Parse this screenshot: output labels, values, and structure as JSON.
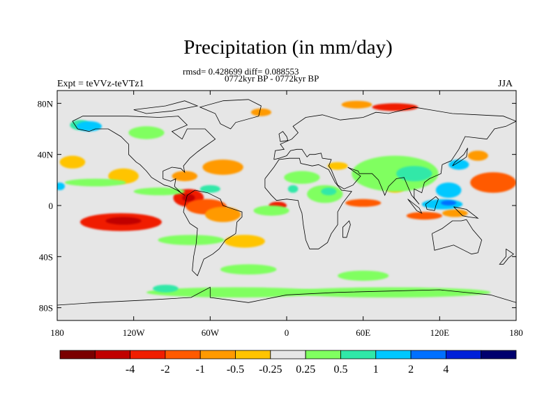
{
  "title": "Precipitation (in mm/day)",
  "stats": "rmsd= 0.428699 diff= 0.088553",
  "period": "0772kyr BP - 0772kyr BP",
  "left_label": "Expt = teVVz-teVTz1",
  "right_label": "JJA",
  "chart_data": {
    "type": "heatmap",
    "title": "Precipitation (in mm/day)",
    "xlim": [
      -180,
      180
    ],
    "ylim": [
      -90,
      90
    ],
    "x_ticks": [
      {
        "value": -180,
        "label": "180"
      },
      {
        "value": -120,
        "label": "120W"
      },
      {
        "value": -60,
        "label": "60W"
      },
      {
        "value": 0,
        "label": "0"
      },
      {
        "value": 60,
        "label": "60E"
      },
      {
        "value": 120,
        "label": "120E"
      },
      {
        "value": 180,
        "label": "180"
      }
    ],
    "y_ticks": [
      {
        "value": 80,
        "label": "80N"
      },
      {
        "value": 40,
        "label": "40N"
      },
      {
        "value": 0,
        "label": "0"
      },
      {
        "value": -40,
        "label": "40S"
      },
      {
        "value": -80,
        "label": "80S"
      }
    ],
    "colorbar": {
      "colors": [
        "#7a0000",
        "#c00000",
        "#f01e00",
        "#ff5a00",
        "#ff9a00",
        "#ffc400",
        "#e6e6e6",
        "#80ff60",
        "#30e8a8",
        "#00c8ff",
        "#0070ff",
        "#0020d8",
        "#00006e"
      ],
      "labels": [
        "-4",
        "-2",
        "-1",
        "-0.5",
        "-0.25",
        "0.25",
        "0.5",
        "1",
        "2",
        "4"
      ],
      "label_boundaries": [
        2,
        3,
        4,
        5,
        6,
        7,
        8,
        9,
        10,
        11
      ]
    },
    "background_color": "#e6e6e6",
    "features": [
      {
        "lon": -130,
        "lat": -13,
        "rx": 32,
        "ry": 7,
        "level": 2
      },
      {
        "lon": -128,
        "lat": -12,
        "rx": 14,
        "ry": 3,
        "level": 1
      },
      {
        "lon": -77,
        "lat": 6,
        "rx": 12,
        "ry": 7,
        "level": 2
      },
      {
        "lon": -77,
        "lat": 6,
        "rx": 5,
        "ry": 3,
        "level": 1
      },
      {
        "lon": -63,
        "lat": -1,
        "rx": 16,
        "ry": 6,
        "level": 3
      },
      {
        "lon": -50,
        "lat": -7,
        "rx": 14,
        "ry": 6,
        "level": 4
      },
      {
        "lon": -50,
        "lat": 30,
        "rx": 16,
        "ry": 6,
        "level": 4
      },
      {
        "lon": -80,
        "lat": 23,
        "rx": 10,
        "ry": 4,
        "level": 4
      },
      {
        "lon": -128,
        "lat": 23,
        "rx": 12,
        "ry": 6,
        "level": 5
      },
      {
        "lon": -168,
        "lat": 34,
        "rx": 10,
        "ry": 5,
        "level": 5
      },
      {
        "lon": -7,
        "lat": 0,
        "rx": 7,
        "ry": 3,
        "level": 2
      },
      {
        "lon": 60,
        "lat": 2,
        "rx": 14,
        "ry": 3,
        "level": 3
      },
      {
        "lon": 108,
        "lat": -8,
        "rx": 14,
        "ry": 3,
        "level": 3
      },
      {
        "lon": 132,
        "lat": -6,
        "rx": 10,
        "ry": 3,
        "level": 4
      },
      {
        "lon": 162,
        "lat": 18,
        "rx": 18,
        "ry": 8,
        "level": 3
      },
      {
        "lon": 150,
        "lat": 39,
        "rx": 8,
        "ry": 4,
        "level": 4
      },
      {
        "lon": 85,
        "lat": 77,
        "rx": 18,
        "ry": 3,
        "level": 2
      },
      {
        "lon": 55,
        "lat": 79,
        "rx": 12,
        "ry": 3,
        "level": 4
      },
      {
        "lon": -20,
        "lat": 73,
        "rx": 8,
        "ry": 3,
        "level": 4
      },
      {
        "lon": -33,
        "lat": -28,
        "rx": 16,
        "ry": 5,
        "level": 5
      },
      {
        "lon": 40,
        "lat": 31,
        "rx": 8,
        "ry": 3,
        "level": 5
      },
      {
        "lon": 85,
        "lat": 14,
        "rx": 8,
        "ry": 4,
        "level": 5
      },
      {
        "lon": -100,
        "lat": 11,
        "rx": 20,
        "ry": 3,
        "level": 7
      },
      {
        "lon": -60,
        "lat": 13,
        "rx": 8,
        "ry": 3,
        "level": 8
      },
      {
        "lon": 12,
        "lat": 22,
        "rx": 14,
        "ry": 5,
        "level": 7
      },
      {
        "lon": 30,
        "lat": 9,
        "rx": 14,
        "ry": 7,
        "level": 7
      },
      {
        "lon": 33,
        "lat": 11,
        "rx": 6,
        "ry": 3,
        "level": 8
      },
      {
        "lon": -12,
        "lat": -4,
        "rx": 14,
        "ry": 4,
        "level": 7
      },
      {
        "lon": 85,
        "lat": 25,
        "rx": 34,
        "ry": 14,
        "level": 7
      },
      {
        "lon": 100,
        "lat": 25,
        "rx": 14,
        "ry": 6,
        "level": 8
      },
      {
        "lon": 127,
        "lat": 12,
        "rx": 10,
        "ry": 6,
        "level": 9
      },
      {
        "lon": 122,
        "lat": 1,
        "rx": 16,
        "ry": 4,
        "level": 9
      },
      {
        "lon": 127,
        "lat": 2,
        "rx": 6,
        "ry": 2,
        "level": 10
      },
      {
        "lon": 135,
        "lat": 32,
        "rx": 8,
        "ry": 4,
        "level": 9
      },
      {
        "lon": -162,
        "lat": 63,
        "rx": 8,
        "ry": 4,
        "level": 8
      },
      {
        "lon": -110,
        "lat": 57,
        "rx": 14,
        "ry": 5,
        "level": 7
      },
      {
        "lon": -150,
        "lat": 18,
        "rx": 24,
        "ry": 3,
        "level": 7
      },
      {
        "lon": -75,
        "lat": -27,
        "rx": 26,
        "ry": 4,
        "level": 7
      },
      {
        "lon": -40,
        "lat": -68,
        "rx": 70,
        "ry": 4,
        "level": 7
      },
      {
        "lon": 80,
        "lat": -68,
        "rx": 80,
        "ry": 4,
        "level": 7
      },
      {
        "lon": -30,
        "lat": -50,
        "rx": 22,
        "ry": 4,
        "level": 7
      },
      {
        "lon": 60,
        "lat": -55,
        "rx": 20,
        "ry": 4,
        "level": 7
      },
      {
        "lon": -95,
        "lat": -65,
        "rx": 10,
        "ry": 3,
        "level": 8
      },
      {
        "lon": -178,
        "lat": 15,
        "rx": 4,
        "ry": 3,
        "level": 9
      },
      {
        "lon": -155,
        "lat": 62,
        "rx": 10,
        "ry": 4,
        "level": 9
      },
      {
        "lon": 5,
        "lat": 13,
        "rx": 4,
        "ry": 3,
        "level": 8
      }
    ]
  }
}
